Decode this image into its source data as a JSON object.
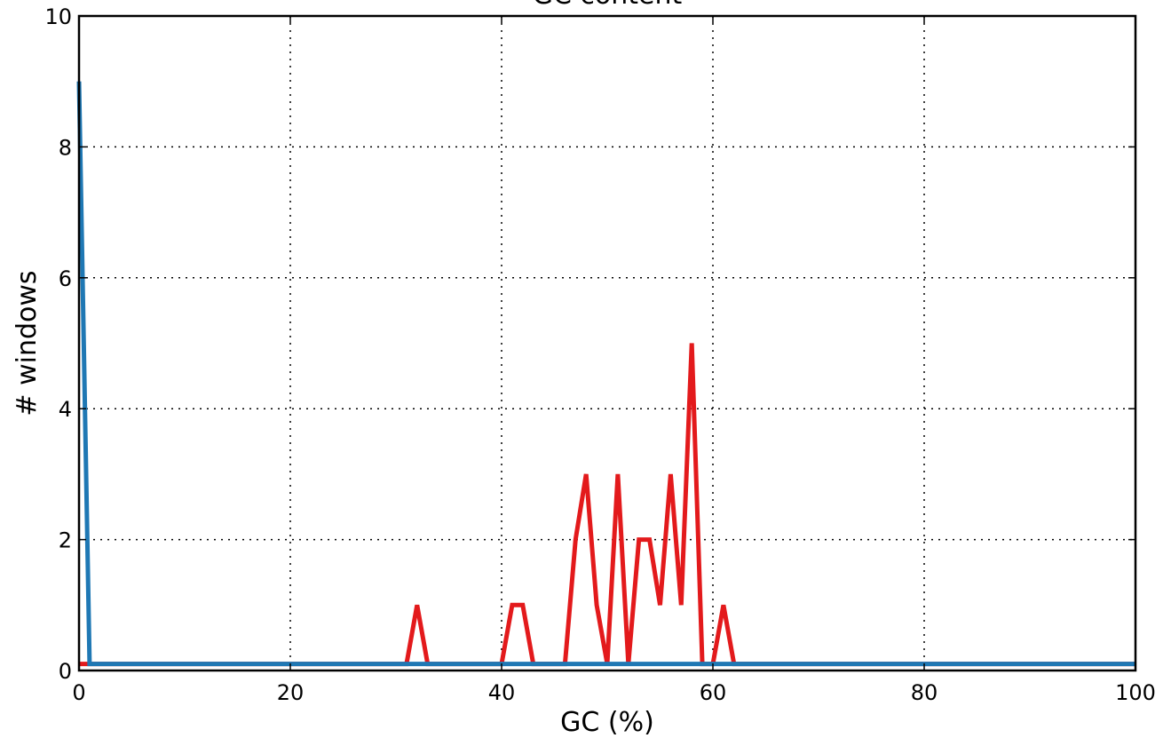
{
  "chart_data": {
    "type": "line",
    "title": "GC content",
    "xlabel": "GC (%)",
    "ylabel": "# windows",
    "xlim": [
      0,
      100
    ],
    "ylim": [
      0,
      10
    ],
    "xticks": [
      "0",
      "20",
      "40",
      "60",
      "80",
      "100"
    ],
    "yticks": [
      "0",
      "2",
      "4",
      "6",
      "8",
      "10"
    ],
    "grid": true,
    "legend": "none",
    "series": [
      {
        "color": "#e31a1c",
        "points": [
          [
            0,
            0.1
          ],
          [
            31,
            0.1
          ],
          [
            32,
            1
          ],
          [
            33,
            0.1
          ],
          [
            40,
            0.1
          ],
          [
            41,
            1
          ],
          [
            42,
            1
          ],
          [
            43,
            0.1
          ],
          [
            46,
            0.1
          ],
          [
            47,
            2
          ],
          [
            48,
            3
          ],
          [
            49,
            1
          ],
          [
            50,
            0.1
          ],
          [
            51,
            3
          ],
          [
            52,
            0.1
          ],
          [
            53,
            2
          ],
          [
            54,
            2
          ],
          [
            55,
            1
          ],
          [
            56,
            3
          ],
          [
            57,
            1
          ],
          [
            58,
            5
          ],
          [
            59,
            0.1
          ],
          [
            60,
            0.1
          ],
          [
            61,
            1
          ],
          [
            62,
            0.1
          ],
          [
            100,
            0.1
          ]
        ]
      },
      {
        "color": "#1f78b4",
        "points": [
          [
            0,
            9
          ],
          [
            1,
            0.1
          ],
          [
            100,
            0.1
          ]
        ]
      }
    ]
  }
}
